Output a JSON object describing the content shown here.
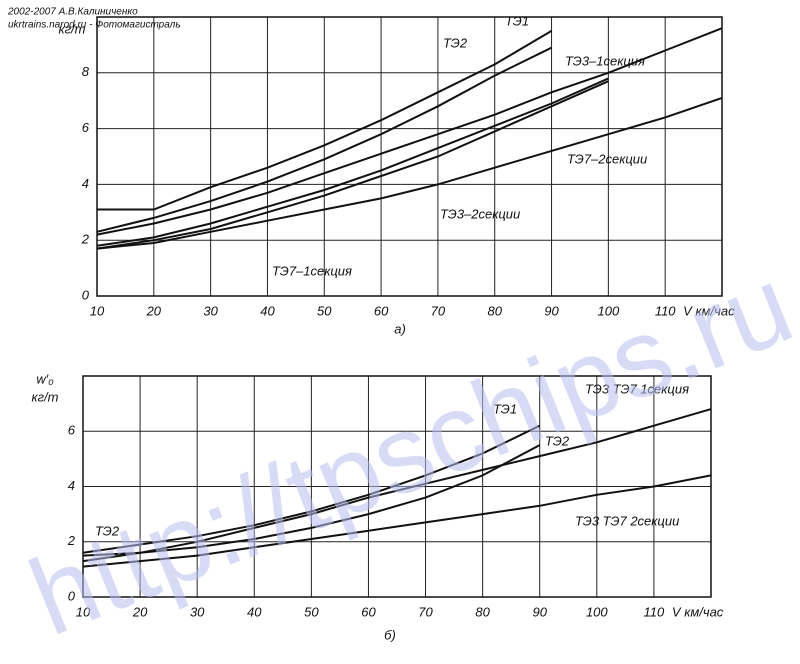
{
  "credits": [
    "2002-2007 А.В.Калиниченко",
    "ukrtrains.narod.ru - Фотомагистраль"
  ],
  "watermark": "http://tpschips.ru",
  "chart_data": [
    {
      "type": "line",
      "caption": "а)",
      "y_label": "кг/т",
      "x_label": "V км/час",
      "x": [
        10,
        20,
        30,
        40,
        50,
        60,
        70,
        80,
        90,
        100,
        110,
        120
      ],
      "xlim": [
        10,
        120
      ],
      "xticks": [
        10,
        20,
        30,
        40,
        50,
        60,
        70,
        80,
        90,
        100,
        110
      ],
      "ylim": [
        0,
        10
      ],
      "yticks": [
        0,
        2,
        4,
        6,
        8
      ],
      "grid": true,
      "series": [
        {
          "name": "ТЭ1",
          "color": "#111111",
          "values": [
            3.1,
            3.1,
            3.9,
            4.6,
            5.4,
            6.3,
            7.3,
            8.3,
            9.5,
            null,
            null,
            null
          ]
        },
        {
          "name": "ТЭ2",
          "color": "#111111",
          "values": [
            2.3,
            2.8,
            3.4,
            4.1,
            4.9,
            5.8,
            6.8,
            7.9,
            8.9,
            null,
            null,
            null
          ]
        },
        {
          "name": "ТЭ3–1секция",
          "color": "#111111",
          "values": [
            2.2,
            2.6,
            3.1,
            3.7,
            4.4,
            5.1,
            5.8,
            6.5,
            7.3,
            8.0,
            8.8,
            9.6
          ]
        },
        {
          "name": "ТЭ7–2секции",
          "color": "#111111",
          "values": [
            1.7,
            1.9,
            2.3,
            2.7,
            3.1,
            3.5,
            4.0,
            4.6,
            5.2,
            5.8,
            6.4,
            7.1
          ]
        },
        {
          "name": "ТЭ3–2секции",
          "color": "#111111",
          "values": [
            1.8,
            2.1,
            2.6,
            3.2,
            3.8,
            4.5,
            5.3,
            6.1,
            6.9,
            7.8,
            null,
            null
          ]
        },
        {
          "name": "ТЭ7–1секция",
          "color": "#111111",
          "values": [
            1.7,
            2.0,
            2.4,
            3.0,
            3.6,
            4.3,
            5.0,
            5.9,
            6.8,
            7.7,
            null,
            null
          ]
        }
      ]
    },
    {
      "type": "line",
      "caption": "б)",
      "y_label": "кг/т",
      "y_symbol": "w′₀",
      "x_label": "V км/час",
      "x": [
        10,
        20,
        30,
        40,
        50,
        60,
        70,
        80,
        90,
        100,
        110,
        120
      ],
      "xlim": [
        10,
        120
      ],
      "xticks": [
        10,
        20,
        30,
        40,
        50,
        60,
        70,
        80,
        90,
        100,
        110
      ],
      "ylim": [
        0,
        8
      ],
      "yticks": [
        0,
        2,
        4,
        6
      ],
      "grid": true,
      "annotations": [
        "ТЭ2"
      ],
      "series": [
        {
          "name": "ТЭ1",
          "color": "#111111",
          "values": [
            1.6,
            1.9,
            2.2,
            2.6,
            3.1,
            3.7,
            4.4,
            5.2,
            6.2,
            null,
            null,
            null
          ]
        },
        {
          "name": "ТЭ2",
          "color": "#111111",
          "values": [
            1.5,
            1.6,
            1.8,
            2.1,
            2.5,
            3.0,
            3.6,
            4.4,
            5.5,
            null,
            null,
            null
          ]
        },
        {
          "name": "ТЭ3 ТЭ7 1секция",
          "color": "#111111",
          "values": [
            1.3,
            1.6,
            2.0,
            2.5,
            3.0,
            3.6,
            4.1,
            4.6,
            5.1,
            5.6,
            6.2,
            6.8
          ]
        },
        {
          "name": "ТЭ3 ТЭ7 2секции",
          "color": "#111111",
          "values": [
            1.1,
            1.3,
            1.5,
            1.8,
            2.1,
            2.4,
            2.7,
            3.0,
            3.3,
            3.7,
            4.0,
            4.4
          ]
        }
      ]
    }
  ]
}
